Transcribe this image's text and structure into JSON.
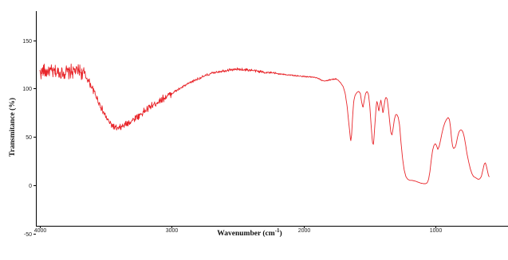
{
  "chart_data": {
    "type": "line",
    "title": "",
    "xlabel": "Wavenumber (cm",
    "xlabel_sup": "-1",
    "xlabel_end": ")",
    "ylabel": "Transmitance (%)",
    "x_reversed": true,
    "xlim": [
      4000,
      450
    ],
    "ylim": [
      -52,
      190
    ],
    "x_ticks": [
      4000,
      3000,
      2000,
      1000
    ],
    "x_tick_labels": [
      "4000",
      "3000",
      "2000",
      "1000"
    ],
    "y_ticks": [
      -50,
      0,
      50,
      100,
      150
    ],
    "y_tick_labels": [
      "-50",
      "0",
      "50",
      "100",
      "150"
    ],
    "grid": false,
    "series": [
      {
        "color": "#e8252a",
        "noise": [
          {
            "from": 4000,
            "to": 3650,
            "amp": 8
          },
          {
            "from": 3650,
            "to": 3000,
            "amp": 4
          },
          {
            "from": 3000,
            "to": 2200,
            "amp": 1.5
          },
          {
            "from": 2200,
            "to": 1750,
            "amp": 0.7
          }
        ],
        "points": [
          [
            4000,
            117
          ],
          [
            3950,
            118
          ],
          [
            3900,
            117
          ],
          [
            3850,
            116
          ],
          [
            3800,
            117
          ],
          [
            3750,
            118
          ],
          [
            3700,
            118
          ],
          [
            3670,
            116
          ],
          [
            3640,
            110
          ],
          [
            3600,
            100
          ],
          [
            3560,
            88
          ],
          [
            3520,
            76
          ],
          [
            3480,
            66
          ],
          [
            3440,
            60
          ],
          [
            3410,
            58
          ],
          [
            3380,
            60
          ],
          [
            3350,
            63
          ],
          [
            3300,
            67
          ],
          [
            3250,
            72
          ],
          [
            3200,
            77
          ],
          [
            3150,
            82
          ],
          [
            3100,
            87
          ],
          [
            3050,
            91
          ],
          [
            3000,
            95
          ],
          [
            2950,
            99
          ],
          [
            2900,
            103
          ],
          [
            2850,
            107
          ],
          [
            2800,
            110
          ],
          [
            2750,
            113
          ],
          [
            2700,
            115.5
          ],
          [
            2650,
            117.5
          ],
          [
            2600,
            118.5
          ],
          [
            2550,
            119.5
          ],
          [
            2500,
            120
          ],
          [
            2450,
            119.5
          ],
          [
            2400,
            119
          ],
          [
            2350,
            118
          ],
          [
            2300,
            117
          ],
          [
            2250,
            116
          ],
          [
            2200,
            115.5
          ],
          [
            2150,
            114.5
          ],
          [
            2100,
            114
          ],
          [
            2050,
            113
          ],
          [
            2000,
            112.5
          ],
          [
            1950,
            112
          ],
          [
            1900,
            111
          ],
          [
            1870,
            109
          ],
          [
            1850,
            108
          ],
          [
            1820,
            108
          ],
          [
            1790,
            109.5
          ],
          [
            1760,
            110
          ],
          [
            1740,
            109
          ],
          [
            1720,
            106
          ],
          [
            1700,
            102
          ],
          [
            1685,
            95
          ],
          [
            1670,
            82
          ],
          [
            1660,
            68
          ],
          [
            1650,
            55
          ],
          [
            1643,
            45
          ],
          [
            1636,
            52
          ],
          [
            1628,
            72
          ],
          [
            1620,
            87
          ],
          [
            1610,
            93
          ],
          [
            1595,
            96
          ],
          [
            1582,
            97
          ],
          [
            1570,
            95
          ],
          [
            1560,
            86
          ],
          [
            1550,
            80
          ],
          [
            1540,
            88
          ],
          [
            1530,
            95
          ],
          [
            1518,
            97
          ],
          [
            1508,
            94
          ],
          [
            1498,
            82
          ],
          [
            1488,
            62
          ],
          [
            1478,
            44
          ],
          [
            1470,
            42
          ],
          [
            1462,
            58
          ],
          [
            1452,
            78
          ],
          [
            1445,
            87
          ],
          [
            1438,
            84
          ],
          [
            1430,
            76
          ],
          [
            1422,
            83
          ],
          [
            1414,
            88
          ],
          [
            1406,
            82
          ],
          [
            1398,
            74
          ],
          [
            1390,
            82
          ],
          [
            1382,
            89
          ],
          [
            1374,
            91
          ],
          [
            1366,
            89
          ],
          [
            1356,
            78
          ],
          [
            1346,
            64
          ],
          [
            1338,
            54
          ],
          [
            1330,
            52
          ],
          [
            1322,
            58
          ],
          [
            1312,
            68
          ],
          [
            1302,
            73
          ],
          [
            1292,
            73
          ],
          [
            1282,
            70
          ],
          [
            1272,
            62
          ],
          [
            1262,
            45
          ],
          [
            1250,
            28
          ],
          [
            1238,
            16
          ],
          [
            1225,
            9
          ],
          [
            1210,
            6
          ],
          [
            1195,
            5
          ],
          [
            1180,
            5
          ],
          [
            1165,
            4.5
          ],
          [
            1150,
            4
          ],
          [
            1130,
            3
          ],
          [
            1110,
            2
          ],
          [
            1090,
            1.5
          ],
          [
            1075,
            1.5
          ],
          [
            1062,
            2.5
          ],
          [
            1052,
            6
          ],
          [
            1042,
            14
          ],
          [
            1032,
            26
          ],
          [
            1022,
            36
          ],
          [
            1012,
            41
          ],
          [
            1002,
            43
          ],
          [
            992,
            41
          ],
          [
            982,
            37
          ],
          [
            972,
            40
          ],
          [
            962,
            46
          ],
          [
            952,
            53
          ],
          [
            940,
            60
          ],
          [
            928,
            65
          ],
          [
            916,
            68
          ],
          [
            904,
            70
          ],
          [
            894,
            68
          ],
          [
            886,
            60
          ],
          [
            878,
            48
          ],
          [
            870,
            40
          ],
          [
            862,
            38
          ],
          [
            852,
            39
          ],
          [
            842,
            43
          ],
          [
            832,
            50
          ],
          [
            822,
            55
          ],
          [
            812,
            57
          ],
          [
            802,
            57
          ],
          [
            792,
            55
          ],
          [
            782,
            50
          ],
          [
            772,
            42
          ],
          [
            760,
            32
          ],
          [
            748,
            24
          ],
          [
            736,
            17
          ],
          [
            724,
            12
          ],
          [
            712,
            9
          ],
          [
            700,
            8
          ],
          [
            688,
            7
          ],
          [
            676,
            6
          ],
          [
            664,
            6.5
          ],
          [
            652,
            9
          ],
          [
            640,
            16
          ],
          [
            630,
            22
          ],
          [
            622,
            23
          ],
          [
            614,
            20
          ],
          [
            606,
            15
          ],
          [
            598,
            10
          ],
          [
            590,
            8
          ]
        ]
      }
    ]
  }
}
